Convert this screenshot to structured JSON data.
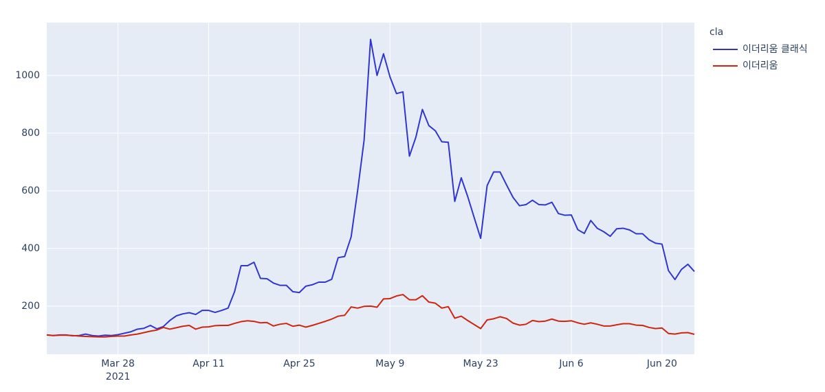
{
  "chart_data": {
    "type": "line",
    "x": [
      "2021-03-17",
      "2021-03-18",
      "2021-03-19",
      "2021-03-20",
      "2021-03-21",
      "2021-03-22",
      "2021-03-23",
      "2021-03-24",
      "2021-03-25",
      "2021-03-26",
      "2021-03-27",
      "2021-03-28",
      "2021-03-29",
      "2021-03-30",
      "2021-03-31",
      "2021-04-01",
      "2021-04-02",
      "2021-04-03",
      "2021-04-04",
      "2021-04-05",
      "2021-04-06",
      "2021-04-07",
      "2021-04-08",
      "2021-04-09",
      "2021-04-10",
      "2021-04-11",
      "2021-04-12",
      "2021-04-13",
      "2021-04-14",
      "2021-04-15",
      "2021-04-16",
      "2021-04-17",
      "2021-04-18",
      "2021-04-19",
      "2021-04-20",
      "2021-04-21",
      "2021-04-22",
      "2021-04-23",
      "2021-04-24",
      "2021-04-25",
      "2021-04-26",
      "2021-04-27",
      "2021-04-28",
      "2021-04-29",
      "2021-04-30",
      "2021-05-01",
      "2021-05-02",
      "2021-05-03",
      "2021-05-04",
      "2021-05-05",
      "2021-05-06",
      "2021-05-07",
      "2021-05-08",
      "2021-05-09",
      "2021-05-10",
      "2021-05-11",
      "2021-05-12",
      "2021-05-13",
      "2021-05-14",
      "2021-05-15",
      "2021-05-16",
      "2021-05-17",
      "2021-05-18",
      "2021-05-19",
      "2021-05-20",
      "2021-05-21",
      "2021-05-22",
      "2021-05-23",
      "2021-05-24",
      "2021-05-25",
      "2021-05-26",
      "2021-05-27",
      "2021-05-28",
      "2021-05-29",
      "2021-05-30",
      "2021-05-31",
      "2021-06-01",
      "2021-06-02",
      "2021-06-03",
      "2021-06-04",
      "2021-06-05",
      "2021-06-06",
      "2021-06-07",
      "2021-06-08",
      "2021-06-09",
      "2021-06-10",
      "2021-06-11",
      "2021-06-12",
      "2021-06-13",
      "2021-06-14",
      "2021-06-15",
      "2021-06-16",
      "2021-06-17",
      "2021-06-18",
      "2021-06-19",
      "2021-06-20",
      "2021-06-21",
      "2021-06-22",
      "2021-06-23",
      "2021-06-24",
      "2021-06-25"
    ],
    "series": [
      {
        "name": "이더리움 클래식",
        "color": "#2f36cf",
        "values": [
          100,
          98,
          100,
          100,
          97,
          98,
          103,
          98,
          96,
          99,
          98,
          101,
          106,
          111,
          120,
          123,
          133,
          121,
          129,
          150,
          166,
          173,
          177,
          171,
          185,
          185,
          178,
          185,
          193,
          250,
          340,
          340,
          352,
          296,
          295,
          280,
          272,
          272,
          250,
          247,
          269,
          274,
          283,
          283,
          293,
          368,
          372,
          440,
          600,
          775,
          1125,
          1000,
          1075,
          995,
          937,
          943,
          720,
          786,
          882,
          826,
          808,
          770,
          768,
          563,
          645,
          580,
          507,
          435,
          618,
          665,
          665,
          620,
          577,
          548,
          552,
          567,
          552,
          551,
          560,
          521,
          515,
          516,
          465,
          452,
          497,
          470,
          458,
          442,
          468,
          470,
          464,
          451,
          451,
          430,
          418,
          415,
          323,
          292,
          327,
          345,
          320
        ]
      },
      {
        "name": "이더리움",
        "color": "#d0240f",
        "values": [
          100,
          98,
          99,
          99,
          98,
          96,
          95,
          94,
          93,
          93,
          95,
          96,
          96,
          100,
          103,
          108,
          113,
          117,
          126,
          120,
          125,
          130,
          133,
          120,
          127,
          128,
          132,
          133,
          133,
          140,
          146,
          149,
          147,
          142,
          143,
          131,
          137,
          140,
          130,
          134,
          127,
          133,
          140,
          147,
          155,
          165,
          168,
          197,
          193,
          199,
          200,
          196,
          225,
          226,
          235,
          240,
          222,
          222,
          236,
          214,
          210,
          193,
          198,
          158,
          165,
          150,
          136,
          122,
          152,
          156,
          163,
          157,
          141,
          134,
          137,
          150,
          146,
          148,
          155,
          148,
          147,
          149,
          142,
          137,
          142,
          137,
          131,
          131,
          135,
          139,
          139,
          134,
          133,
          126,
          122,
          124,
          105,
          103,
          107,
          108,
          102
        ]
      }
    ],
    "xlim": [
      "2021-03-17",
      "2021-06-25"
    ],
    "xticks": [
      {
        "value": "2021-03-28",
        "label": "Mar 28"
      },
      {
        "value": "2021-04-11",
        "label": "Apr 11"
      },
      {
        "value": "2021-04-25",
        "label": "Apr 25"
      },
      {
        "value": "2021-05-09",
        "label": "May 9"
      },
      {
        "value": "2021-05-23",
        "label": "May 23"
      },
      {
        "value": "2021-06-06",
        "label": "Jun 6"
      },
      {
        "value": "2021-06-20",
        "label": "Jun 20"
      }
    ],
    "x_year_label": "2021",
    "ylim": [
      33,
      1183
    ],
    "yticks": [
      200,
      400,
      600,
      800,
      1000
    ],
    "grid": true,
    "legend_title": "cla",
    "legend_position": "right"
  }
}
